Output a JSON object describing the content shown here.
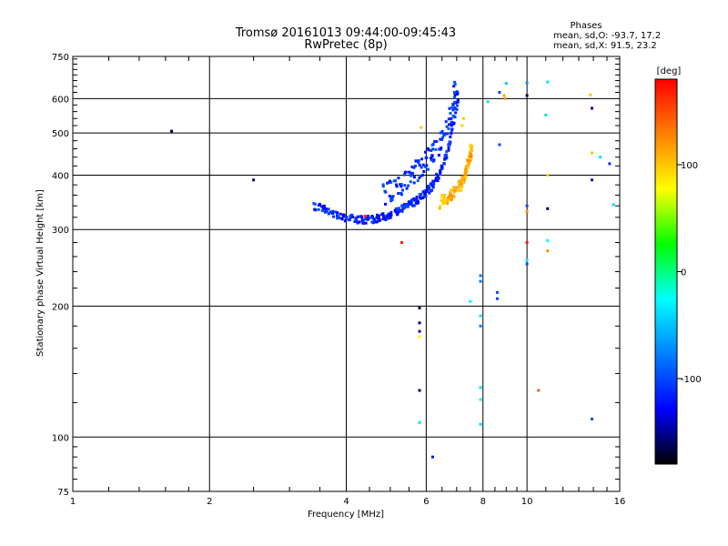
{
  "chart_data": {
    "type": "scatter",
    "title": "Tromsø 20161013 09:44:00-09:45:43",
    "subtitle": "RwPretec (8p)",
    "xlabel": "Frequency [MHz]",
    "ylabel": "Stationary phase Virtual Height [km]",
    "x_scale": "log",
    "y_scale": "log",
    "xlim": [
      1,
      16
    ],
    "ylim": [
      75,
      750
    ],
    "grid": true,
    "x_ticks": [
      1,
      2,
      4,
      6,
      8,
      10,
      16
    ],
    "y_ticks_major": [
      75,
      100,
      200,
      300,
      400,
      500,
      600,
      750
    ],
    "phase_box": {
      "heading": "Phases",
      "line1": "mean, sd,O: -93.7, 17.2",
      "line2": "mean, sd,X:  91.5, 23.2"
    },
    "colorbar": {
      "label": "[deg]",
      "ticks": [
        -100,
        0,
        100
      ],
      "range": [
        -180,
        180
      ],
      "colors_top_to_bottom": [
        "#ff0000",
        "#ff8000",
        "#ffff00",
        "#00ff00",
        "#00ffff",
        "#0080ff",
        "#0000ff",
        "#000000"
      ]
    },
    "series": [
      {
        "points_O_trace": [
          [
            3.4,
            340
          ],
          [
            3.5,
            337
          ],
          [
            3.6,
            334
          ],
          [
            3.7,
            330
          ],
          [
            3.8,
            325
          ],
          [
            3.9,
            322
          ],
          [
            4.0,
            320
          ],
          [
            4.1,
            318
          ],
          [
            4.2,
            317
          ],
          [
            4.3,
            316
          ],
          [
            4.4,
            316
          ],
          [
            4.5,
            316
          ],
          [
            4.6,
            317
          ],
          [
            4.7,
            318
          ],
          [
            4.8,
            320
          ],
          [
            4.9,
            322
          ],
          [
            5.0,
            325
          ],
          [
            5.1,
            328
          ],
          [
            5.2,
            331
          ],
          [
            5.3,
            334
          ],
          [
            5.4,
            338
          ],
          [
            5.5,
            342
          ],
          [
            5.6,
            346
          ],
          [
            5.7,
            350
          ],
          [
            5.8,
            355
          ],
          [
            5.9,
            360
          ],
          [
            6.0,
            366
          ],
          [
            6.1,
            372
          ],
          [
            6.2,
            380
          ],
          [
            6.3,
            390
          ],
          [
            6.4,
            402
          ],
          [
            6.5,
            418
          ],
          [
            6.6,
            438
          ],
          [
            6.7,
            462
          ],
          [
            6.8,
            492
          ],
          [
            6.9,
            530
          ],
          [
            7.0,
            580
          ],
          [
            7.05,
            620
          ]
        ],
        "points_upper_trace": [
          [
            4.8,
            360
          ],
          [
            5.0,
            368
          ],
          [
            5.2,
            378
          ],
          [
            5.4,
            390
          ],
          [
            5.6,
            402
          ],
          [
            5.8,
            415
          ],
          [
            6.0,
            430
          ],
          [
            6.2,
            450
          ],
          [
            6.4,
            475
          ],
          [
            6.6,
            505
          ],
          [
            6.8,
            545
          ],
          [
            6.9,
            590
          ],
          [
            6.95,
            630
          ]
        ],
        "points_X_trace": [
          [
            6.4,
            345
          ],
          [
            6.6,
            352
          ],
          [
            6.8,
            360
          ],
          [
            7.0,
            372
          ],
          [
            7.2,
            385
          ],
          [
            7.3,
            400
          ],
          [
            7.4,
            420
          ],
          [
            7.5,
            445
          ],
          [
            7.55,
            465
          ]
        ],
        "points_scattered": [
          [
            1.65,
            505,
            -160
          ],
          [
            2.5,
            390,
            -160
          ],
          [
            4.4,
            322,
            170
          ],
          [
            5.3,
            280,
            170
          ],
          [
            5.8,
            198,
            -160
          ],
          [
            5.8,
            183,
            -160
          ],
          [
            5.8,
            175,
            -140
          ],
          [
            5.8,
            170,
            80
          ],
          [
            5.8,
            128,
            -160
          ],
          [
            5.8,
            108,
            -40
          ],
          [
            6.2,
            90,
            -120
          ],
          [
            7.5,
            205,
            -30
          ],
          [
            7.9,
            235,
            -80
          ],
          [
            7.9,
            228,
            -80
          ],
          [
            7.9,
            190,
            -40
          ],
          [
            7.9,
            180,
            -80
          ],
          [
            7.9,
            130,
            -40
          ],
          [
            7.9,
            122,
            -30
          ],
          [
            7.9,
            107,
            -40
          ],
          [
            8.2,
            590,
            -40
          ],
          [
            8.7,
            620,
            -100
          ],
          [
            8.7,
            470,
            -100
          ],
          [
            8.6,
            215,
            -100
          ],
          [
            8.6,
            208,
            -100
          ],
          [
            9.0,
            650,
            -50
          ],
          [
            10.0,
            652,
            -70
          ],
          [
            10.0,
            610,
            -160
          ],
          [
            10.0,
            340,
            -100
          ],
          [
            10.0,
            330,
            120
          ],
          [
            10.0,
            280,
            170
          ],
          [
            10.0,
            250,
            -100
          ],
          [
            10.0,
            255,
            -30
          ],
          [
            10.6,
            128,
            140
          ],
          [
            11.1,
            655,
            -40
          ],
          [
            11.0,
            550,
            -40
          ],
          [
            11.1,
            400,
            100
          ],
          [
            11.1,
            335,
            -160
          ],
          [
            11.1,
            283,
            -30
          ],
          [
            11.1,
            268,
            120
          ],
          [
            13.8,
            612,
            100
          ],
          [
            13.9,
            570,
            -140
          ],
          [
            13.9,
            450,
            100
          ],
          [
            13.9,
            390,
            -120
          ],
          [
            13.9,
            110,
            -100
          ],
          [
            14.5,
            440,
            -40
          ],
          [
            15.2,
            425,
            -110
          ],
          [
            15.5,
            342,
            -40
          ],
          [
            5.85,
            515,
            100
          ],
          [
            7.2,
            520,
            100
          ],
          [
            7.25,
            540,
            100
          ],
          [
            8.9,
            610,
            110
          ],
          [
            8.95,
            600,
            120
          ]
        ]
      }
    ]
  }
}
